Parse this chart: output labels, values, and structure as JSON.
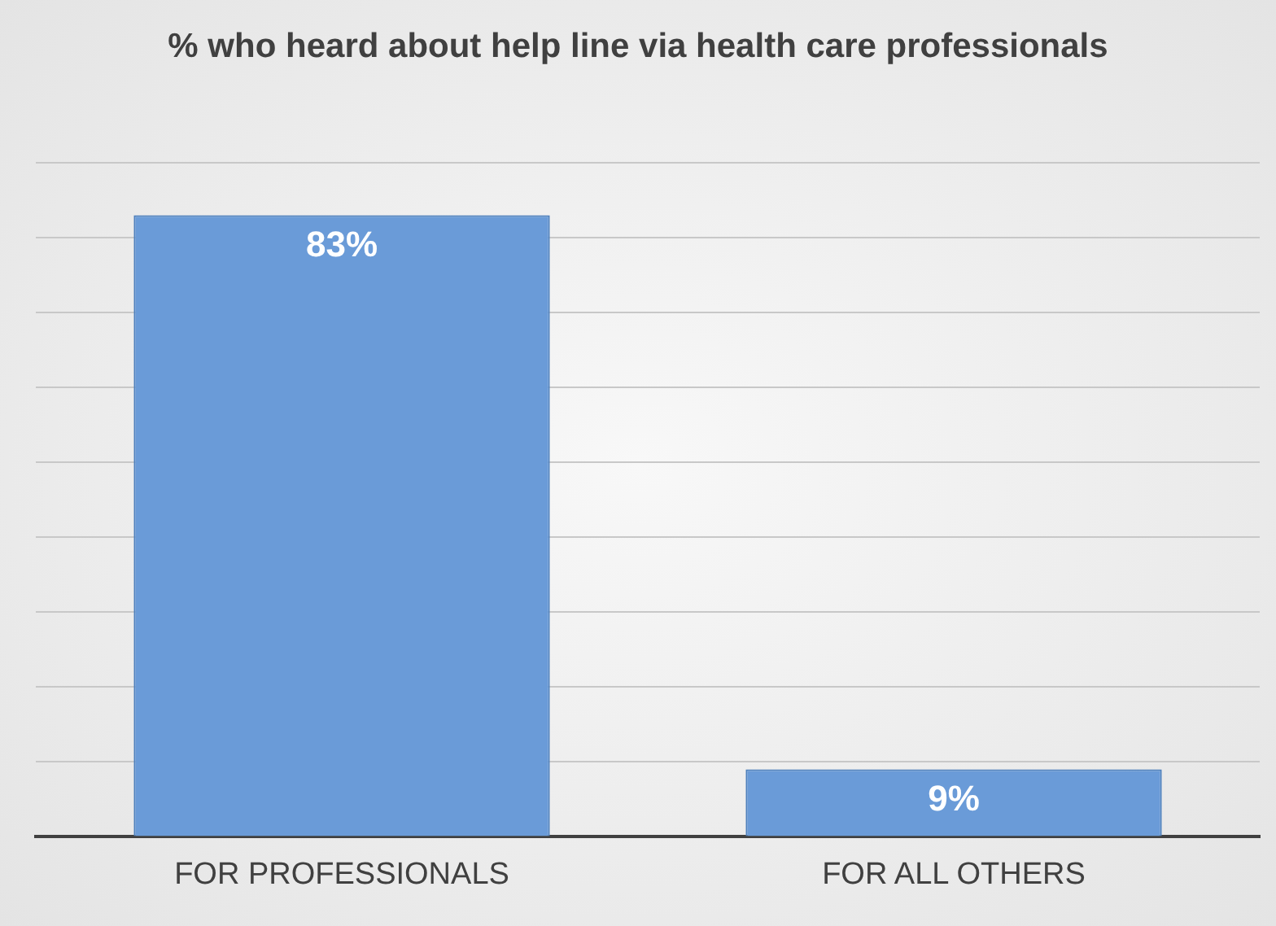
{
  "chart_data": {
    "type": "bar",
    "title": "% who heard about help line via health care professionals",
    "categories": [
      "FOR PROFESSIONALS",
      "FOR ALL OTHERS"
    ],
    "values": [
      83,
      9
    ],
    "color": "#6a9bd8",
    "value_labels": [
      "83%",
      "9%"
    ],
    "ylim": [
      0,
      90
    ],
    "yticks": [
      {
        "value": 0,
        "label": null
      },
      {
        "value": 10,
        "label": null
      },
      {
        "value": 20,
        "label": null
      },
      {
        "value": 30,
        "label": null
      },
      {
        "value": 40,
        "label": null
      },
      {
        "value": 50,
        "label": null
      },
      {
        "value": 60,
        "label": null
      },
      {
        "value": 70,
        "label": null
      },
      {
        "value": 80,
        "label": null
      },
      {
        "value": 90,
        "label": null
      }
    ],
    "grid": "y",
    "tick_labels": "x",
    "legend": false
  }
}
